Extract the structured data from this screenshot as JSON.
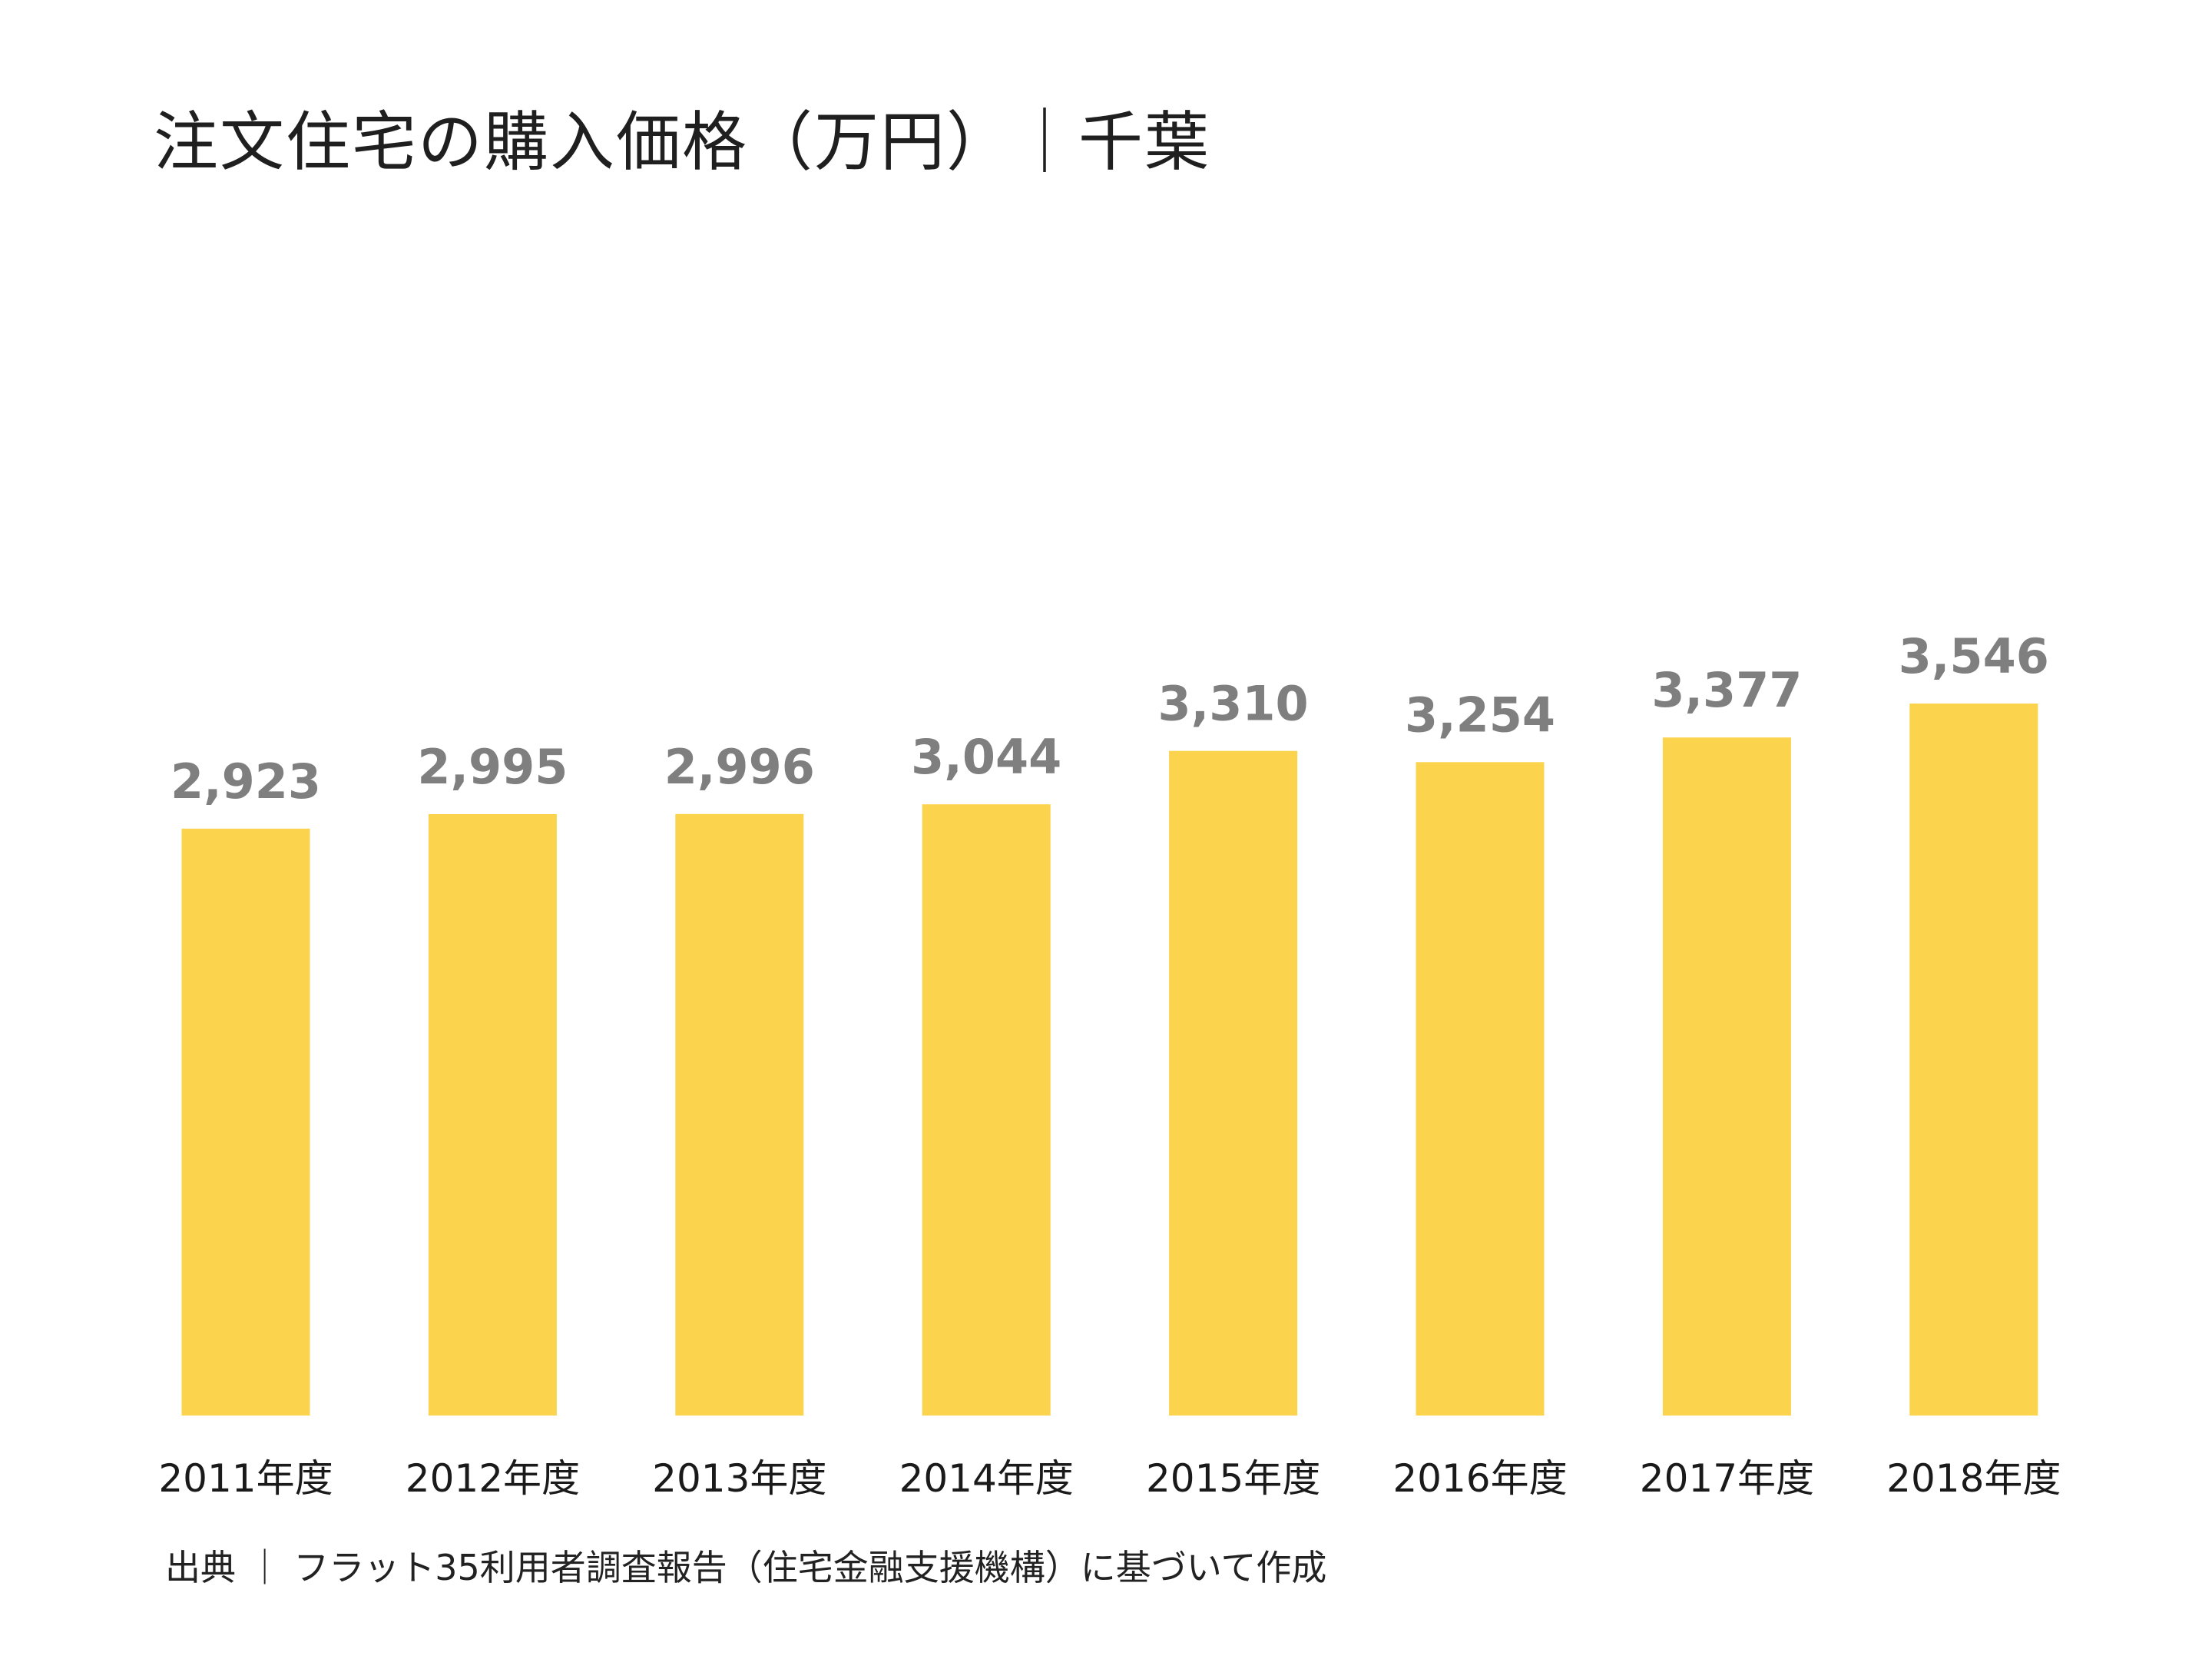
{
  "chart_data": {
    "type": "bar",
    "title": "注文住宅の購入価格（万円）｜千葉",
    "categories": [
      "2011年度",
      "2012年度",
      "2013年度",
      "2014年度",
      "2015年度",
      "2016年度",
      "2017年度",
      "2018年度"
    ],
    "values": [
      2923,
      2995,
      2996,
      3044,
      3310,
      3254,
      3377,
      3546
    ],
    "value_labels": [
      "2,923",
      "2,995",
      "2,996",
      "3,044",
      "3,310",
      "3,254",
      "3,377",
      "3,546"
    ],
    "xlabel": "",
    "ylabel": "",
    "ylim": [
      0,
      3546
    ],
    "grid": false,
    "legend": "none",
    "bar_color": "#FCD34D",
    "value_label_color": "#7F7F7F",
    "category_label_color": "#1A1A1A"
  },
  "footer": {
    "source": "出典 ｜ フラット35利用者調査報告（住宅金融支援機構）に基づいて作成"
  }
}
